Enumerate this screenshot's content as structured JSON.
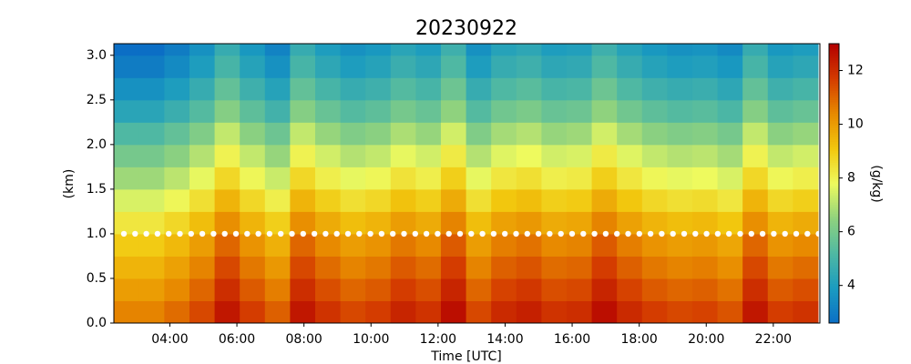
{
  "chart_data": {
    "type": "heatmap",
    "title": "20230922",
    "xlabel": "Time [UTC]",
    "ylabel": "(km)",
    "zlabel": "(g/kg)",
    "x": [
      2.71,
      3.46,
      4.21,
      4.96,
      5.71,
      6.46,
      7.21,
      7.96,
      8.71,
      9.46,
      10.21,
      10.96,
      11.71,
      12.46,
      13.21,
      13.96,
      14.71,
      15.46,
      16.21,
      16.96,
      17.71,
      18.46,
      19.21,
      19.96,
      20.71,
      21.46,
      22.21,
      22.96
    ],
    "y": [
      0.125,
      0.375,
      0.625,
      0.875,
      1.125,
      1.375,
      1.625,
      1.875,
      2.125,
      2.375,
      2.625,
      2.875,
      3.125
    ],
    "values": [
      [
        10.5,
        10,
        9.5,
        9,
        8.3,
        7.5,
        6.7,
        6,
        5.2,
        4.3,
        3.6,
        3,
        2.6
      ],
      [
        10.5,
        10,
        9.5,
        9,
        8.3,
        7.5,
        6.7,
        6,
        5.2,
        4.3,
        3.6,
        3,
        2.6
      ],
      [
        10.9,
        10.4,
        9.9,
        9.4,
        8.7,
        7.9,
        7.1,
        6.4,
        5.6,
        4.7,
        4,
        3.4,
        3
      ],
      [
        11.5,
        11,
        10.5,
        10,
        9.3,
        8.5,
        7.7,
        7,
        6.2,
        5.3,
        4.6,
        4.0,
        3.6
      ],
      [
        12.5,
        12,
        11.5,
        11,
        10.3,
        9.5,
        8.7,
        8,
        7.2,
        6.3,
        5.6,
        5,
        4.6
      ],
      [
        11.7,
        11.2,
        10.7,
        10.2,
        9.5,
        8.7,
        7.9,
        7.2,
        6.4,
        5.5,
        4.8,
        4.2,
        3.8
      ],
      [
        11.1,
        10.6,
        10.1,
        9.6,
        8.9,
        8.1,
        7.3,
        6.6,
        5.8,
        4.9,
        4.2,
        3.6,
        3.2
      ],
      [
        12.5,
        12,
        11.5,
        11,
        10.3,
        9.5,
        8.7,
        8,
        7.2,
        6.3,
        5.6,
        5,
        4.6
      ],
      [
        11.9,
        11.4,
        10.9,
        10.4,
        9.7,
        8.9,
        8.1,
        7.4,
        6.6,
        5.7,
        5,
        4.4,
        4
      ],
      [
        11.5,
        11,
        10.5,
        10,
        9.3,
        8.5,
        7.7,
        7,
        6.2,
        5.3,
        4.6,
        4.0,
        3.6
      ],
      [
        11.7,
        11.2,
        10.7,
        10.2,
        9.5,
        8.7,
        7.9,
        7.2,
        6.4,
        5.5,
        4.8,
        4.2,
        3.8
      ],
      [
        12.2,
        11.7,
        11.2,
        10.7,
        10,
        9.2,
        8.4,
        7.7,
        6.9,
        6,
        5.3,
        4.7,
        4.3
      ],
      [
        11.9,
        11.4,
        10.9,
        10.4,
        9.7,
        8.9,
        8.1,
        7.4,
        6.6,
        5.7,
        5,
        4.4,
        4
      ],
      [
        12.7,
        12.2,
        11.7,
        11.2,
        10.5,
        9.7,
        8.9,
        8.2,
        7.4,
        6.5,
        5.8,
        5.2,
        4.8
      ],
      [
        11.5,
        11,
        10.5,
        10,
        9.3,
        8.5,
        7.7,
        7,
        6.2,
        5.3,
        4.6,
        4.0,
        3.6
      ],
      [
        12.1,
        11.6,
        11.1,
        10.6,
        9.9,
        9.1,
        8.3,
        7.6,
        6.8,
        5.9,
        5.2,
        4.6,
        4.2
      ],
      [
        12.3,
        11.8,
        11.3,
        10.8,
        10.1,
        9.3,
        8.5,
        7.8,
        7,
        6.1,
        5.4,
        4.8,
        4.4
      ],
      [
        11.9,
        11.4,
        10.9,
        10.4,
        9.7,
        8.9,
        8.1,
        7.4,
        6.6,
        5.7,
        5,
        4.4,
        4
      ],
      [
        12,
        11.5,
        11,
        10.5,
        9.8,
        9,
        8.2,
        7.5,
        6.7,
        5.8,
        5.1,
        4.5,
        4.1
      ],
      [
        12.7,
        12.2,
        11.7,
        11.2,
        10.5,
        9.7,
        8.9,
        8.2,
        7.4,
        6.5,
        5.8,
        5.2,
        4.8
      ],
      [
        12.1,
        11.6,
        11.1,
        10.6,
        9.9,
        9.1,
        8.3,
        7.6,
        6.8,
        5.9,
        5.2,
        4.6,
        4.2
      ],
      [
        11.7,
        11.2,
        10.7,
        10.2,
        9.5,
        8.7,
        7.9,
        7.2,
        6.4,
        5.5,
        4.8,
        4.2,
        3.8
      ],
      [
        11.5,
        11,
        10.5,
        10,
        9.3,
        8.5,
        7.7,
        7,
        6.2,
        5.3,
        4.6,
        4.0,
        3.6
      ],
      [
        11.6,
        11.1,
        10.6,
        10.1,
        9.4,
        8.6,
        7.8,
        7.1,
        6.3,
        5.4,
        4.7,
        4.1,
        3.7
      ],
      [
        11.3,
        10.8,
        10.3,
        9.8,
        9.1,
        8.3,
        7.5,
        6.8,
        6,
        5.1,
        4.4,
        3.8,
        3.4
      ],
      [
        12.5,
        12,
        11.5,
        11,
        10.3,
        9.5,
        8.7,
        8,
        7.2,
        6.3,
        5.6,
        5,
        4.6
      ],
      [
        11.7,
        11.2,
        10.7,
        10.2,
        9.5,
        8.7,
        7.9,
        7.2,
        6.4,
        5.5,
        4.8,
        4.2,
        3.8
      ],
      [
        11.9,
        11.4,
        10.9,
        10.4,
        9.7,
        8.9,
        8.1,
        7.4,
        6.6,
        5.7,
        5,
        4.4,
        4
      ]
    ],
    "xlim": [
      2.33,
      23.39
    ],
    "xticks": [
      {
        "value": 4,
        "label": "04:00"
      },
      {
        "value": 6,
        "label": "06:00"
      },
      {
        "value": 8,
        "label": "08:00"
      },
      {
        "value": 10,
        "label": "10:00"
      },
      {
        "value": 12,
        "label": "12:00"
      },
      {
        "value": 14,
        "label": "14:00"
      },
      {
        "value": 16,
        "label": "16:00"
      },
      {
        "value": 18,
        "label": "18:00"
      },
      {
        "value": 20,
        "label": "20:00"
      },
      {
        "value": 22,
        "label": "22:00"
      }
    ],
    "ylim": [
      0,
      3.13
    ],
    "yticks": [
      {
        "value": 0,
        "label": "0.0"
      },
      0.5,
      {
        "value": 1,
        "label": "1.0"
      },
      1.5,
      {
        "value": 2,
        "label": "2.0"
      },
      2.5,
      {
        "value": 3,
        "label": "3.0"
      }
    ],
    "zlim": [
      2.6,
      13
    ],
    "zticks": [
      4,
      6,
      8,
      10,
      12
    ],
    "colormap": [
      "#0b6ec5",
      "#1a9bc0",
      "#4fb8a3",
      "#8fd27e",
      "#eefa5e",
      "#f2c70e",
      "#e88a00",
      "#d43c00",
      "#b30000"
    ],
    "reference_line": {
      "y": 1,
      "color": "#ffffff"
    }
  }
}
